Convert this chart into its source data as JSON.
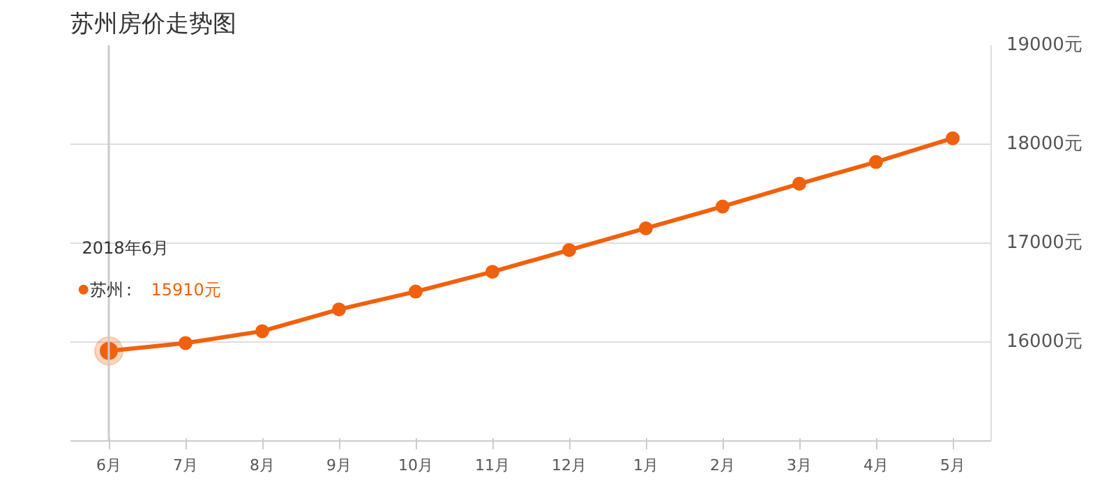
{
  "chart_data": {
    "type": "line",
    "title": "苏州房价走势图",
    "categories": [
      "6月",
      "7月",
      "8月",
      "9月",
      "10月",
      "11月",
      "12月",
      "1月",
      "2月",
      "3月",
      "4月",
      "5月"
    ],
    "series": [
      {
        "name": "苏州",
        "color": "#f0610e",
        "values": [
          15910,
          15990,
          16110,
          16330,
          16510,
          16710,
          16930,
          17150,
          17370,
          17600,
          17820,
          18060
        ]
      }
    ],
    "ylim": [
      15000,
      19000
    ],
    "yticks": [
      {
        "value": 15000,
        "label": null
      },
      {
        "value": 16000,
        "label": "16000元"
      },
      {
        "value": 17000,
        "label": "17000元"
      },
      {
        "value": 18000,
        "label": "18000元"
      },
      {
        "value": 19000,
        "label": "19000元"
      }
    ],
    "grid": "y",
    "marker": "circle",
    "line_style": "solid",
    "legend": "left",
    "ref_lines": [
      {
        "axis": "x",
        "value": "6月",
        "color": "#cccccc"
      }
    ],
    "annotations": [
      "2018年6月",
      "：",
      "15910元"
    ]
  }
}
